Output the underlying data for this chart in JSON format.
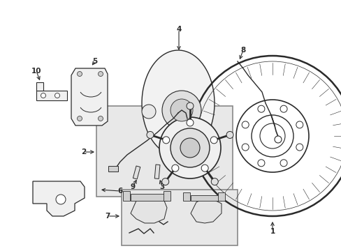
{
  "bg_color": "#ffffff",
  "line_color": "#2a2a2a",
  "box_fill": "#e8e8e8",
  "figw": 4.89,
  "figh": 3.6,
  "dpi": 100
}
